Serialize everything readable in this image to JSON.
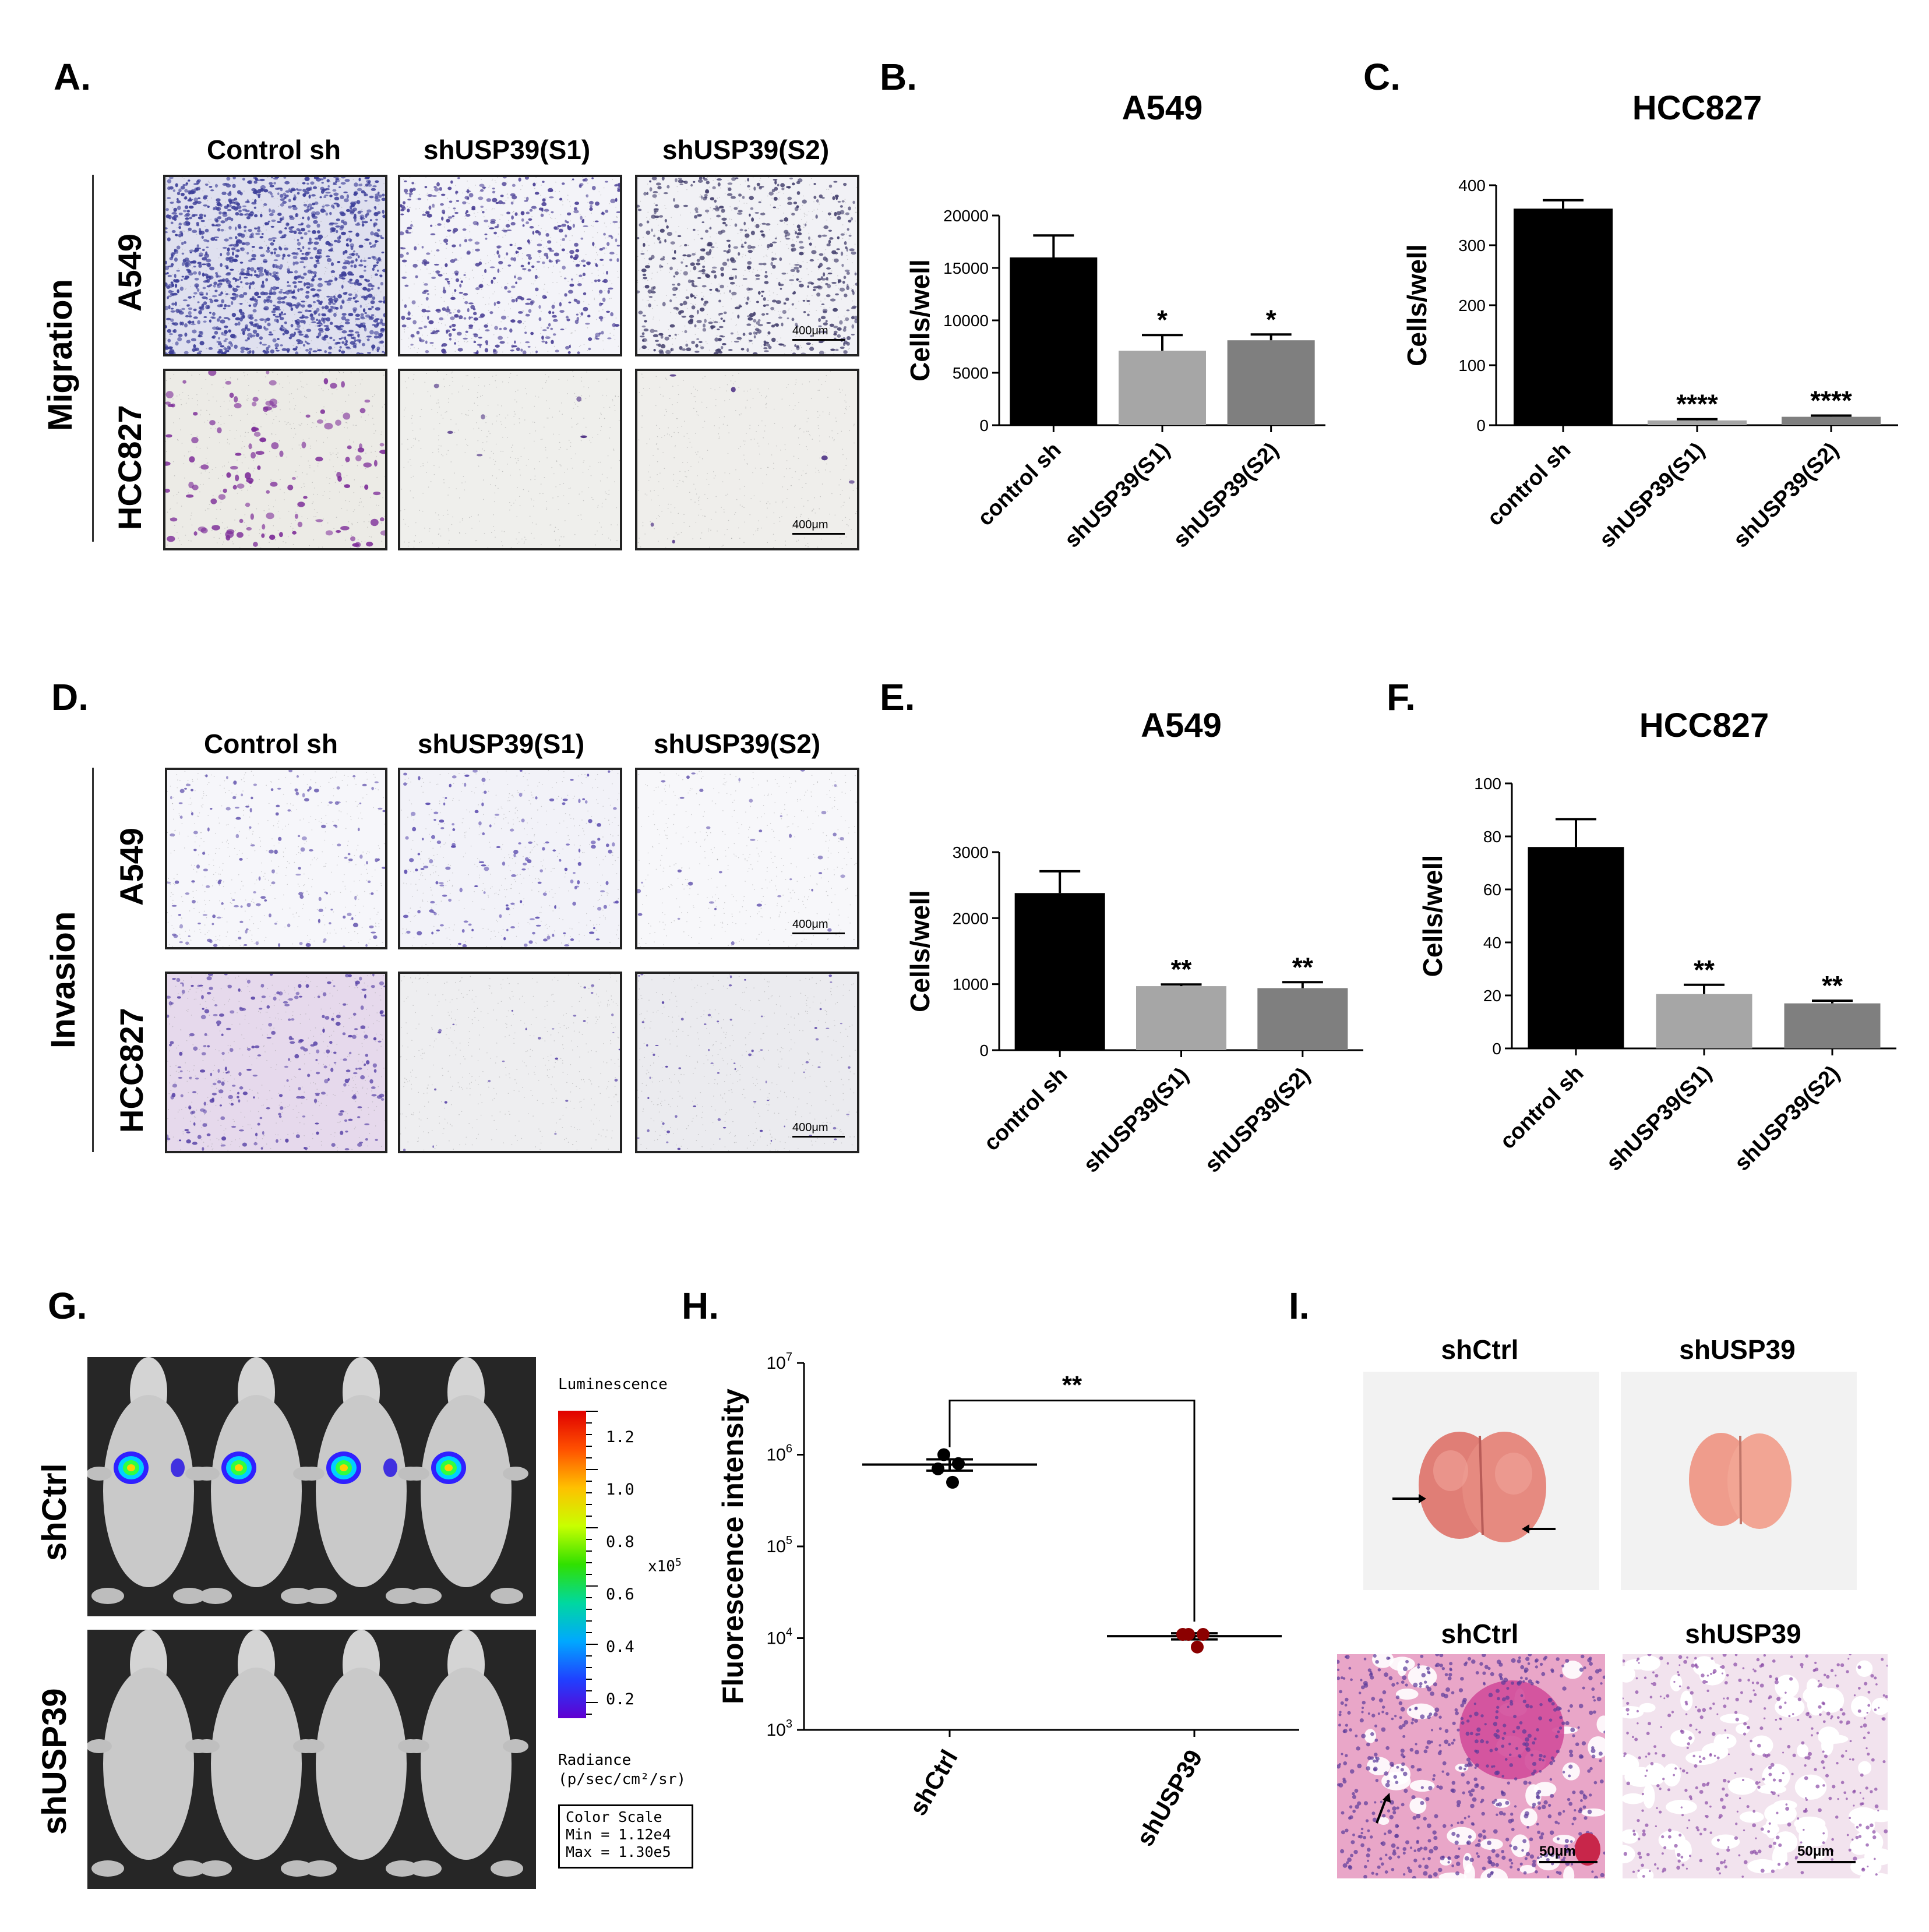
{
  "panels": {
    "A": "A.",
    "B": "B.",
    "C": "C.",
    "D": "D.",
    "E": "E.",
    "F": "F.",
    "G": "G.",
    "H": "H.",
    "I": "I."
  },
  "micrographs": {
    "columns": [
      "Control sh",
      "shUSP39(S1)",
      "shUSP39(S2)"
    ],
    "rows": [
      "A549",
      "HCC827"
    ],
    "migration_label": "Migration",
    "invasion_label": "Invasion",
    "scale_bar": "400μm"
  },
  "chart_data": [
    {
      "id": "B",
      "type": "bar",
      "title": "A549",
      "ylabel": "Cells/well",
      "categories": [
        "control sh",
        "shUSP39(S1)",
        "shUSP39(S2)"
      ],
      "values": [
        16000,
        7100,
        8100
      ],
      "errors": [
        2100,
        1500,
        550
      ],
      "significance": [
        "",
        "*",
        "*"
      ],
      "ylim": [
        0,
        20000
      ],
      "yticks": [
        "0",
        "5000",
        "10000",
        "15000",
        "20000"
      ],
      "colors": [
        "#000000",
        "#a6a6a6",
        "#7f7f7f"
      ]
    },
    {
      "id": "C",
      "type": "bar",
      "title": "HCC827",
      "ylabel": "Cells/well",
      "categories": [
        "control sh",
        "shUSP39(S1)",
        "shUSP39(S2)"
      ],
      "values": [
        361,
        8,
        14
      ],
      "errors": [
        14,
        2,
        2
      ],
      "significance": [
        "",
        "****",
        "****"
      ],
      "ylim": [
        0,
        400
      ],
      "yticks": [
        "0",
        "100",
        "200",
        "300",
        "400"
      ],
      "colors": [
        "#000000",
        "#a6a6a6",
        "#7f7f7f"
      ]
    },
    {
      "id": "E",
      "type": "bar",
      "title": "A549",
      "ylabel": "Cells/well",
      "categories": [
        "control sh",
        "shUSP39(S1)",
        "shUSP39(S2)"
      ],
      "values": [
        2380,
        970,
        940
      ],
      "errors": [
        330,
        25,
        90
      ],
      "significance": [
        "",
        "**",
        "**"
      ],
      "ylim": [
        0,
        3000
      ],
      "yticks": [
        "0",
        "1000",
        "2000",
        "3000"
      ],
      "colors": [
        "#000000",
        "#a6a6a6",
        "#7f7f7f"
      ]
    },
    {
      "id": "F",
      "type": "bar",
      "title": "HCC827",
      "ylabel": "Cells/well",
      "categories": [
        "control sh",
        "shUSP39(S1)",
        "shUSP39(S2)"
      ],
      "values": [
        76,
        20.5,
        17
      ],
      "errors": [
        10.5,
        3.5,
        1
      ],
      "significance": [
        "",
        "**",
        "**"
      ],
      "ylim": [
        0,
        100
      ],
      "yticks": [
        "0",
        "20",
        "40",
        "60",
        "80",
        "100"
      ],
      "colors": [
        "#000000",
        "#a6a6a6",
        "#7f7f7f"
      ]
    },
    {
      "id": "H",
      "type": "scatter",
      "ylabel": "Fluorescence intensity",
      "yscale": "log",
      "ylim": [
        1000,
        10000000
      ],
      "categories": [
        "shCtrl",
        "shUSP39"
      ],
      "series": [
        {
          "points": [
            1000000,
            800000,
            700000,
            500000
          ],
          "mean": 780000,
          "sem": 110000,
          "color": "#000000"
        },
        {
          "points": [
            11000,
            11000,
            11000,
            8000
          ],
          "mean": 10500,
          "sem": 800,
          "color": "#8b0000"
        }
      ],
      "significance": "**"
    }
  ],
  "imaging": {
    "row_labels": [
      "shCtrl",
      "shUSP39"
    ],
    "colorbar_title": "Luminescence",
    "colorbar_ticks": [
      "1.2",
      "1.0",
      "0.8",
      "0.6",
      "0.4",
      "0.2"
    ],
    "colorbar_unit_base": "x10",
    "colorbar_unit_exp": "5",
    "radiance_label": "Radiance",
    "radiance_units": "(p/sec/cm²/sr)",
    "color_scale_title": "Color Scale",
    "color_scale_min": "Min = 1.12e4",
    "color_scale_max": "Max = 1.30e5"
  },
  "lungs": {
    "top_labels": [
      "shCtrl",
      "shUSP39"
    ],
    "histo_labels": [
      "shCtrl",
      "shUSP39"
    ],
    "scale_bar": "50μm"
  }
}
